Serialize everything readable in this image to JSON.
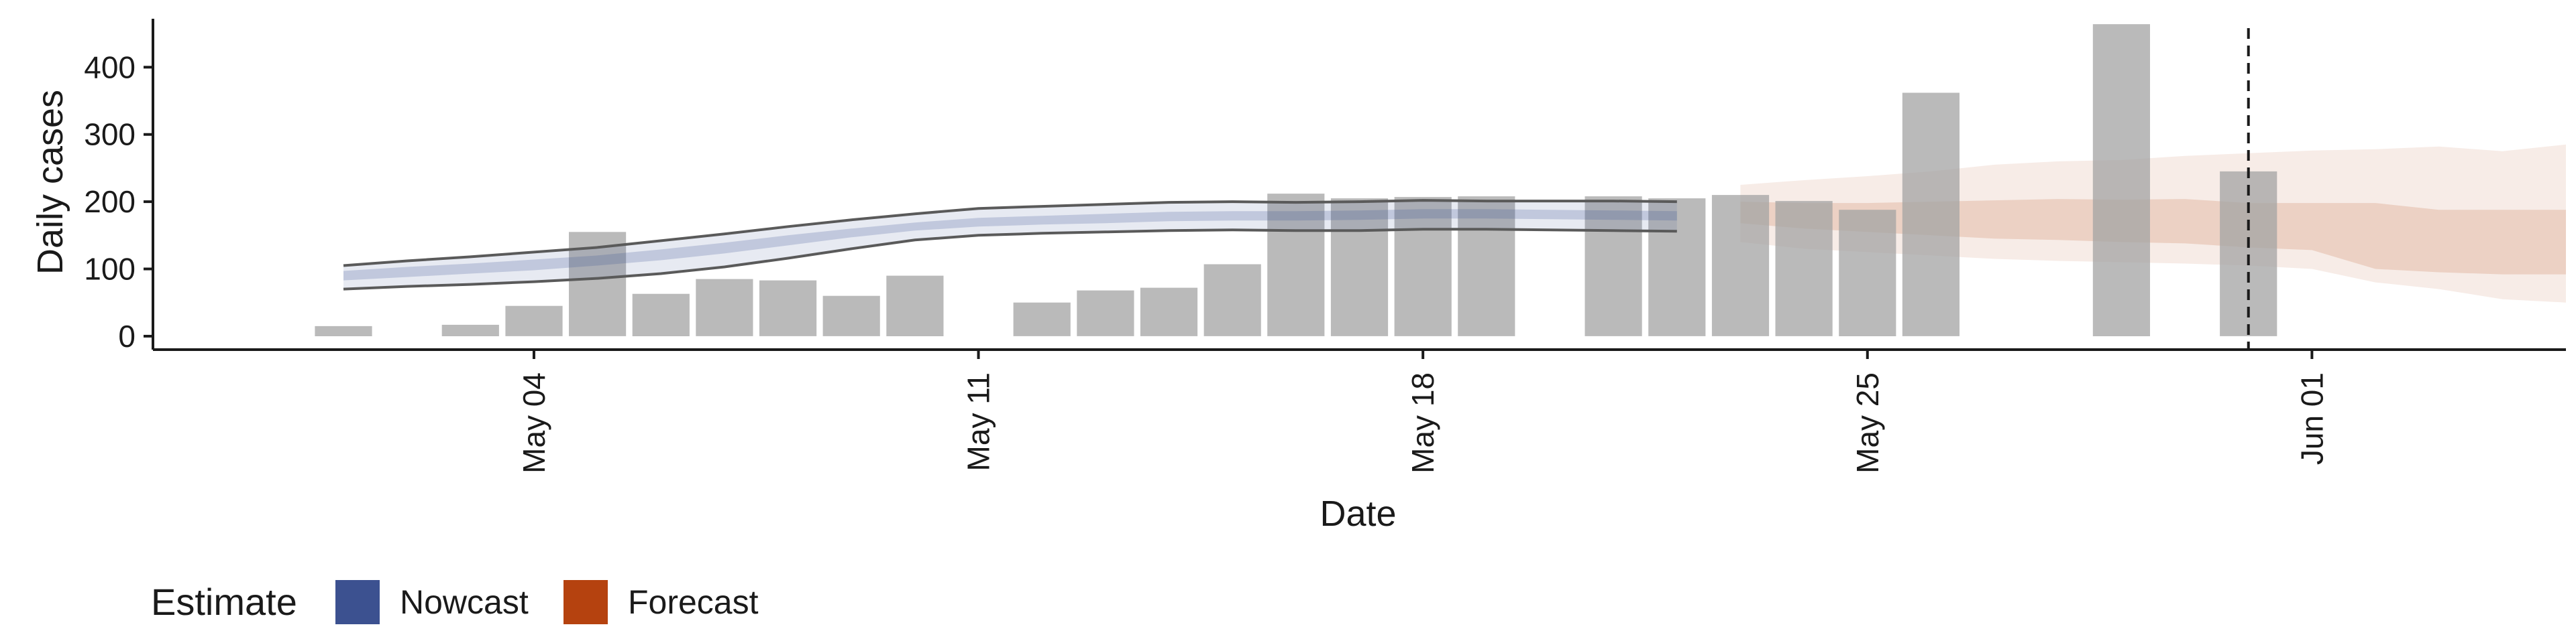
{
  "chart_data": {
    "type": "bar",
    "title": "",
    "xlabel": "Date",
    "ylabel": "Daily cases",
    "ylim": [
      -20,
      480
    ],
    "yticks": [
      0,
      100,
      200,
      300,
      400
    ],
    "xlim": [
      "2020-04-28",
      "2020-06-05"
    ],
    "xticks": [
      {
        "date": "2020-05-04",
        "label": "May 04"
      },
      {
        "date": "2020-05-11",
        "label": "May 11"
      },
      {
        "date": "2020-05-18",
        "label": "May 18"
      },
      {
        "date": "2020-05-25",
        "label": "May 25"
      },
      {
        "date": "2020-06-01",
        "label": "Jun 01"
      }
    ],
    "grid": false,
    "vline_date": "2020-05-31",
    "bars": [
      {
        "date": "2020-05-01",
        "value": 15
      },
      {
        "date": "2020-05-03",
        "value": 17
      },
      {
        "date": "2020-05-04",
        "value": 45
      },
      {
        "date": "2020-05-05",
        "value": 155
      },
      {
        "date": "2020-05-06",
        "value": 63
      },
      {
        "date": "2020-05-07",
        "value": 85
      },
      {
        "date": "2020-05-08",
        "value": 83
      },
      {
        "date": "2020-05-09",
        "value": 60
      },
      {
        "date": "2020-05-10",
        "value": 90
      },
      {
        "date": "2020-05-12",
        "value": 50
      },
      {
        "date": "2020-05-13",
        "value": 68
      },
      {
        "date": "2020-05-14",
        "value": 72
      },
      {
        "date": "2020-05-15",
        "value": 107
      },
      {
        "date": "2020-05-16",
        "value": 212
      },
      {
        "date": "2020-05-17",
        "value": 205
      },
      {
        "date": "2020-05-18",
        "value": 207
      },
      {
        "date": "2020-05-19",
        "value": 208
      },
      {
        "date": "2020-05-21",
        "value": 208
      },
      {
        "date": "2020-05-22",
        "value": 205
      },
      {
        "date": "2020-05-23",
        "value": 210
      },
      {
        "date": "2020-05-24",
        "value": 201
      },
      {
        "date": "2020-05-25",
        "value": 188
      },
      {
        "date": "2020-05-26",
        "value": 362
      },
      {
        "date": "2020-05-29",
        "value": 464
      },
      {
        "date": "2020-05-31",
        "value": 245
      }
    ],
    "nowcast": {
      "name": "Nowcast",
      "color": "#3c5190",
      "dates": [
        "2020-05-01",
        "2020-05-02",
        "2020-05-03",
        "2020-05-04",
        "2020-05-05",
        "2020-05-06",
        "2020-05-07",
        "2020-05-08",
        "2020-05-09",
        "2020-05-10",
        "2020-05-11",
        "2020-05-12",
        "2020-05-13",
        "2020-05-14",
        "2020-05-15",
        "2020-05-16",
        "2020-05-17",
        "2020-05-18",
        "2020-05-19",
        "2020-05-20",
        "2020-05-21",
        "2020-05-22"
      ],
      "outer_lower": [
        70,
        74,
        77,
        81,
        86,
        93,
        103,
        116,
        130,
        143,
        150,
        153,
        155,
        157,
        158,
        157,
        157,
        159,
        159,
        158,
        157,
        156
      ],
      "outer_upper": [
        105,
        112,
        118,
        125,
        132,
        142,
        152,
        163,
        173,
        182,
        190,
        193,
        196,
        199,
        200,
        199,
        200,
        202,
        201,
        201,
        201,
        200
      ],
      "inner_lower": [
        83,
        88,
        93,
        98,
        105,
        113,
        123,
        135,
        147,
        157,
        163,
        166,
        168,
        171,
        172,
        172,
        173,
        175,
        175,
        174,
        173,
        172
      ],
      "inner_upper": [
        97,
        103,
        108,
        114,
        120,
        129,
        139,
        150,
        160,
        169,
        176,
        179,
        182,
        185,
        186,
        186,
        187,
        189,
        189,
        188,
        187,
        186
      ]
    },
    "forecast": {
      "name": "Forecast",
      "color": "#b5420f",
      "dates": [
        "2020-05-23",
        "2020-05-24",
        "2020-05-25",
        "2020-05-26",
        "2020-05-27",
        "2020-05-28",
        "2020-05-29",
        "2020-05-30",
        "2020-05-31",
        "2020-06-01",
        "2020-06-02",
        "2020-06-03",
        "2020-06-04",
        "2020-06-05"
      ],
      "outer_lower": [
        140,
        130,
        125,
        120,
        115,
        112,
        110,
        108,
        105,
        100,
        80,
        70,
        55,
        50
      ],
      "outer_upper": [
        225,
        232,
        238,
        245,
        255,
        260,
        262,
        268,
        272,
        276,
        278,
        282,
        275,
        285
      ],
      "inner_lower": [
        168,
        160,
        155,
        150,
        145,
        143,
        140,
        138,
        132,
        128,
        100,
        95,
        92,
        92
      ],
      "inner_upper": [
        200,
        198,
        198,
        200,
        202,
        204,
        203,
        204,
        198,
        198,
        198,
        188,
        188,
        188
      ]
    },
    "legend": {
      "placement": "bottom-left",
      "title": "Estimate",
      "entries": [
        {
          "label": "Nowcast",
          "color": "#3c5190"
        },
        {
          "label": "Forecast",
          "color": "#b5420f"
        }
      ]
    }
  }
}
